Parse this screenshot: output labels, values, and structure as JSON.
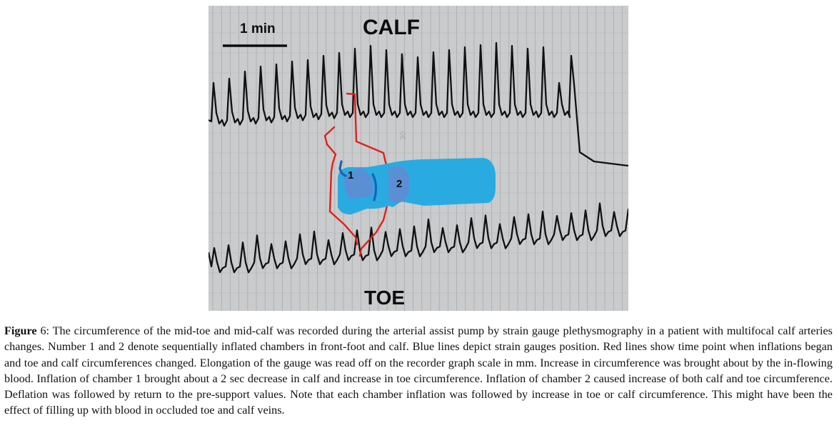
{
  "figure": {
    "scale_bar_label": "1 min",
    "top_trace_label": "CALF",
    "bottom_trace_label": "TOE",
    "chamber_1_label": "1",
    "chamber_2_label": "2",
    "colors": {
      "paper": "#c9cbcc",
      "grid": "#9ea1a2",
      "trace": "#111111",
      "red_lines": "#e0201c",
      "pump": "#29abe2",
      "pump_chamber": "#5b8fd4",
      "strain_gauge": "#1565b8"
    }
  },
  "caption": {
    "label": "Figure",
    "text": " 6: The circumference of the mid-toe and mid-calf was recorded during the arterial assist pump by strain gauge plethysmography in a patient with multifocal calf arteries changes. Number 1 and 2 denote sequentially inflated chambers in front-foot and calf. Blue lines depict strain gauges position. Red lines show time point when inflations began and toe and calf circumferences changed. Elongation of the gauge was read off on the recorder graph scale in mm. Increase in circumference was brought about by the in-flowing blood. Inflation of chamber 1 brought about a 2 sec decrease in calf and increase in toe circumference. Inflation of chamber 2 caused increase of both calf and toe circumference. Deflation was followed by return to the pre-support values. Note that each chamber inflation was followed by increase in toe or calf circumference. This might have been the effect of filling up with blood in occluded toe and calf veins."
  }
}
